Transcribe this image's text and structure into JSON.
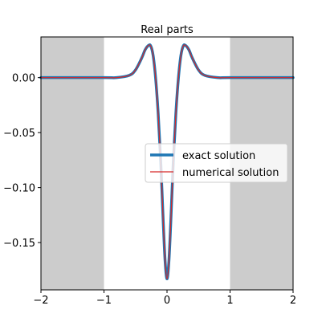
{
  "chart_data": {
    "type": "line",
    "title": "Real parts",
    "xlabel": "",
    "ylabel": "",
    "xlim": [
      -2,
      2
    ],
    "ylim": [
      -0.193,
      0.037
    ],
    "x_ticks": [
      -2,
      -1,
      0,
      1,
      2
    ],
    "x_tick_labels": [
      "−2",
      "−1",
      "0",
      "1",
      "2"
    ],
    "y_ticks": [
      0.0,
      -0.05,
      -0.1,
      -0.15
    ],
    "y_tick_labels": [
      "0.00",
      "−0.05",
      "−0.10",
      "−0.15"
    ],
    "shaded_regions": [
      [
        -2,
        -1
      ],
      [
        1,
        2
      ]
    ],
    "shade_color": "#cccccc",
    "grid": false,
    "legend_position": "center-right",
    "series": [
      {
        "name": "exact solution",
        "color": "#1f77b4",
        "style": "thick",
        "x": [
          -2.0,
          -1.0,
          -0.8,
          -0.6,
          -0.5,
          -0.4,
          -0.35,
          -0.3,
          -0.26,
          -0.22,
          -0.18,
          -0.14,
          -0.1,
          -0.06,
          -0.03,
          0.0,
          0.03,
          0.06,
          0.1,
          0.14,
          0.18,
          0.22,
          0.26,
          0.3,
          0.35,
          0.4,
          0.5,
          0.6,
          0.8,
          1.0,
          2.0
        ],
        "y": [
          0.0,
          0.0,
          0.0,
          0.002,
          0.007,
          0.018,
          0.025,
          0.029,
          0.029,
          0.02,
          -0.001,
          -0.033,
          -0.076,
          -0.131,
          -0.167,
          -0.183,
          -0.167,
          -0.131,
          -0.076,
          -0.033,
          -0.001,
          0.02,
          0.029,
          0.029,
          0.025,
          0.018,
          0.007,
          0.002,
          0.0,
          0.0,
          0.0
        ]
      },
      {
        "name": "numerical solution",
        "color": "#d62728",
        "style": "thin",
        "x": [
          -2.0,
          -1.0,
          -0.8,
          -0.6,
          -0.5,
          -0.4,
          -0.35,
          -0.3,
          -0.26,
          -0.22,
          -0.18,
          -0.14,
          -0.1,
          -0.06,
          -0.03,
          0.0,
          0.03,
          0.06,
          0.1,
          0.14,
          0.18,
          0.22,
          0.26,
          0.3,
          0.35,
          0.4,
          0.5,
          0.6,
          0.8,
          1.0,
          2.0
        ],
        "y": [
          0.0,
          0.0,
          0.0,
          0.002,
          0.007,
          0.018,
          0.025,
          0.029,
          0.029,
          0.02,
          -0.001,
          -0.033,
          -0.076,
          -0.131,
          -0.167,
          -0.183,
          -0.167,
          -0.131,
          -0.076,
          -0.033,
          -0.001,
          0.02,
          0.029,
          0.029,
          0.025,
          0.018,
          0.007,
          0.002,
          0.0,
          0.0,
          0.0
        ]
      }
    ]
  }
}
